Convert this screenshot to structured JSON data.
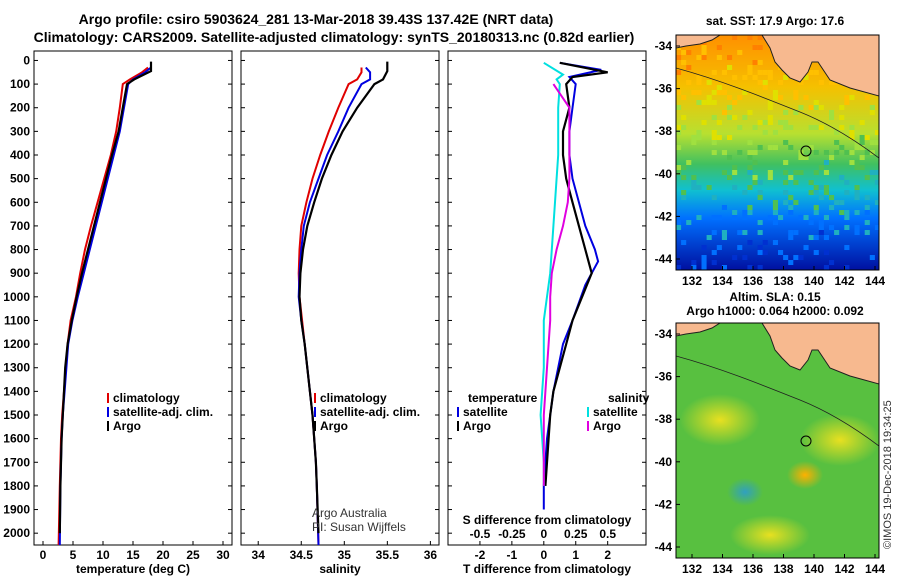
{
  "header": {
    "line1": "Argo profile: csiro 5903624_281 13-Mar-2018 39.43S 137.42E (NRT data)",
    "line2": "Climatology: CARS2009. Satellite-adjusted climatology: synTS_20180313.nc (0.82d earlier)"
  },
  "colors": {
    "climatology": "#e00000",
    "satellite": "#0000e0",
    "argo": "#000000",
    "sat_salinity": "#00e0e0",
    "argo_salinity": "#e000e0",
    "land": "#f7b98f",
    "coast": "#202020"
  },
  "chart_data": [
    {
      "type": "line",
      "xlabel": "temperature (deg C)",
      "ylabel": "",
      "xlim": [
        -1.5,
        31.5
      ],
      "ylim": [
        2050,
        -40
      ],
      "xticks": [
        "0",
        "5",
        "10",
        "15",
        "20",
        "25",
        "30"
      ],
      "yticks": [
        "0",
        "100",
        "200",
        "300",
        "400",
        "500",
        "600",
        "700",
        "800",
        "900",
        "1000",
        "1100",
        "1200",
        "1300",
        "1400",
        "1500",
        "1600",
        "1700",
        "1800",
        "1900",
        "2000"
      ],
      "legend": [
        "climatology",
        "satellite-adj. clim.",
        "Argo"
      ],
      "series": [
        {
          "name": "climatology",
          "color": "#e00000",
          "x": [
            17.5,
            16.5,
            14.5,
            13.3,
            12.8,
            12.2,
            11.3,
            10.2,
            9.1,
            8.0,
            7.0,
            6.2,
            5.5,
            4.6,
            4.1,
            3.8,
            3.5,
            3.2,
            3.0,
            2.9,
            2.8,
            2.6
          ],
          "y": [
            30,
            50,
            80,
            100,
            200,
            300,
            400,
            500,
            600,
            700,
            800,
            900,
            1000,
            1100,
            1200,
            1300,
            1400,
            1500,
            1600,
            1700,
            1800,
            2050
          ]
        },
        {
          "name": "satellite-adj. clim.",
          "color": "#0000e0",
          "x": [
            18.0,
            17.0,
            15.0,
            14.2,
            13.5,
            12.8,
            11.8,
            10.8,
            9.8,
            8.8,
            7.8,
            6.8,
            5.8,
            4.9,
            4.2,
            3.9,
            3.6,
            3.3,
            3.1,
            3.0,
            2.9,
            2.8
          ],
          "y": [
            30,
            50,
            80,
            100,
            200,
            300,
            400,
            500,
            600,
            700,
            800,
            900,
            1000,
            1100,
            1200,
            1300,
            1400,
            1500,
            1600,
            1700,
            1800,
            2050
          ]
        },
        {
          "name": "Argo",
          "color": "#000000",
          "x": [
            18.0,
            18.0,
            15.2,
            14.0,
            13.3,
            12.6,
            11.5,
            10.5,
            9.5,
            8.5,
            7.5,
            6.5,
            5.6,
            4.8,
            4.1,
            3.7,
            3.5,
            3.3,
            3.1,
            3.0,
            2.9,
            2.8
          ],
          "y": [
            5,
            45,
            80,
            100,
            200,
            300,
            400,
            500,
            600,
            700,
            800,
            900,
            1000,
            1100,
            1200,
            1300,
            1400,
            1500,
            1600,
            1700,
            1800,
            2000
          ]
        }
      ]
    },
    {
      "type": "line",
      "xlabel": "salinity",
      "xlim": [
        33.8,
        36.1
      ],
      "ylim": [
        2050,
        -40
      ],
      "xticks": [
        "34",
        "34.5",
        "35",
        "35.5",
        "36"
      ],
      "legend": [
        "climatology",
        "satellite-adj. clim.",
        "Argo"
      ],
      "series": [
        {
          "name": "climatology",
          "color": "#e00000",
          "x": [
            35.2,
            35.2,
            35.15,
            35.05,
            34.93,
            34.82,
            34.72,
            34.63,
            34.56,
            34.5,
            34.48,
            34.47,
            34.48,
            34.51,
            34.54,
            34.57,
            34.6,
            34.63,
            34.65,
            34.67,
            34.68,
            34.7
          ],
          "y": [
            30,
            50,
            80,
            100,
            200,
            300,
            400,
            500,
            600,
            700,
            800,
            900,
            1000,
            1100,
            1200,
            1300,
            1400,
            1500,
            1600,
            1700,
            1800,
            2050
          ]
        },
        {
          "name": "satellite-adj. clim.",
          "color": "#0000e0",
          "x": [
            35.25,
            35.3,
            35.3,
            35.2,
            35.05,
            34.93,
            34.8,
            34.7,
            34.6,
            34.53,
            34.5,
            34.48,
            34.47,
            34.5,
            34.54,
            34.57,
            34.6,
            34.63,
            34.65,
            34.67,
            34.68,
            34.7
          ],
          "y": [
            30,
            50,
            80,
            100,
            200,
            300,
            400,
            500,
            600,
            700,
            800,
            900,
            1000,
            1100,
            1200,
            1300,
            1400,
            1500,
            1600,
            1700,
            1800,
            2050
          ]
        },
        {
          "name": "Argo",
          "color": "#000000",
          "x": [
            35.5,
            35.5,
            35.45,
            35.35,
            35.15,
            34.98,
            34.85,
            34.74,
            34.65,
            34.57,
            34.52,
            34.49,
            34.48,
            34.5,
            34.54,
            34.57,
            34.6,
            34.63,
            34.65,
            34.67,
            34.68,
            34.7
          ],
          "y": [
            5,
            45,
            80,
            100,
            200,
            300,
            400,
            500,
            600,
            700,
            800,
            900,
            1000,
            1100,
            1200,
            1300,
            1400,
            1500,
            1600,
            1700,
            1800,
            2000
          ]
        }
      ],
      "annotation": [
        "Argo Australia",
        "PI: Susan Wijffels"
      ]
    },
    {
      "type": "line",
      "xlabel": "T difference from climatology",
      "xlabel_top": "S difference from climatology",
      "xlim": [
        -3,
        3.2
      ],
      "ylim": [
        2050,
        -40
      ],
      "xticks": [
        "-2",
        "-1",
        "0",
        "1",
        "2"
      ],
      "xticks_top": [
        "-0.5",
        "-0.25",
        "0",
        "0.25",
        "0.5"
      ],
      "legend_titles": [
        "temperature",
        "salinity"
      ],
      "legend_left": [
        "satellite",
        "Argo"
      ],
      "legend_right": [
        "satellite",
        "Argo"
      ],
      "series": [
        {
          "name": "T satellite",
          "color": "#0000e0",
          "x": [
            0.5,
            1.8,
            0.8,
            1.0,
            0.9,
            0.8,
            0.8,
            0.9,
            1.1,
            1.3,
            1.6,
            1.7,
            1.3,
            0.9,
            0.6,
            0.3,
            0.2,
            0.1,
            0.05,
            0.0,
            0.0
          ],
          "y": [
            10,
            40,
            70,
            100,
            200,
            300,
            400,
            500,
            600,
            700,
            800,
            850,
            950,
            1100,
            1200,
            1400,
            1500,
            1600,
            1700,
            1800,
            1900
          ]
        },
        {
          "name": "T Argo",
          "color": "#000000",
          "x": [
            0.5,
            2.0,
            0.9,
            0.7,
            0.8,
            0.6,
            0.6,
            0.7,
            0.9,
            1.1,
            1.3,
            1.5,
            1.2,
            0.9,
            0.7,
            0.5,
            0.3,
            0.2,
            0.15,
            0.1,
            0.05
          ],
          "y": [
            10,
            50,
            70,
            100,
            200,
            300,
            400,
            500,
            600,
            700,
            800,
            900,
            1000,
            1100,
            1200,
            1300,
            1400,
            1500,
            1600,
            1700,
            1800
          ]
        },
        {
          "name": "S satellite",
          "color": "#00e0e0",
          "x": [
            0.0,
            0.6,
            0.4,
            0.5,
            0.45,
            0.45,
            0.45,
            0.4,
            0.35,
            0.3,
            0.25,
            0.2,
            0.1,
            0.0,
            0.0,
            0.0,
            -0.05,
            -0.1,
            -0.05,
            0.0,
            0.0
          ],
          "y": [
            10,
            60,
            80,
            100,
            200,
            300,
            400,
            500,
            600,
            700,
            800,
            900,
            1000,
            1100,
            1200,
            1300,
            1400,
            1500,
            1600,
            1700,
            1800
          ]
        },
        {
          "name": "S Argo",
          "color": "#e000e0",
          "x": [
            0.3,
            0.8,
            0.8,
            0.8,
            0.8,
            0.75,
            0.6,
            0.4,
            0.25,
            0.2,
            0.2,
            0.15,
            0.1,
            0.05,
            0.0,
            0.0,
            0.0,
            0.0
          ],
          "y": [
            100,
            200,
            300,
            400,
            500,
            600,
            700,
            800,
            900,
            1000,
            1100,
            1200,
            1300,
            1400,
            1500,
            1600,
            1700,
            1800
          ]
        }
      ]
    }
  ],
  "maps": {
    "sst": {
      "title": "sat. SST: 17.9 Argo: 17.6",
      "yticks": [
        "-34",
        "-36",
        "-38",
        "-40",
        "-42",
        "-44"
      ],
      "xticks": [
        "132",
        "134",
        "136",
        "138",
        "140",
        "142",
        "144"
      ]
    },
    "sla": {
      "title1": "Altim. SLA: 0.15",
      "title2": "Argo h1000: 0.064 h2000: 0.092",
      "yticks": [
        "-34",
        "-36",
        "-38",
        "-40",
        "-42",
        "-44"
      ],
      "xticks": [
        "132",
        "134",
        "136",
        "138",
        "140",
        "142",
        "144"
      ]
    }
  },
  "credit": "©IMOS 19-Dec-2018 19:34:25"
}
